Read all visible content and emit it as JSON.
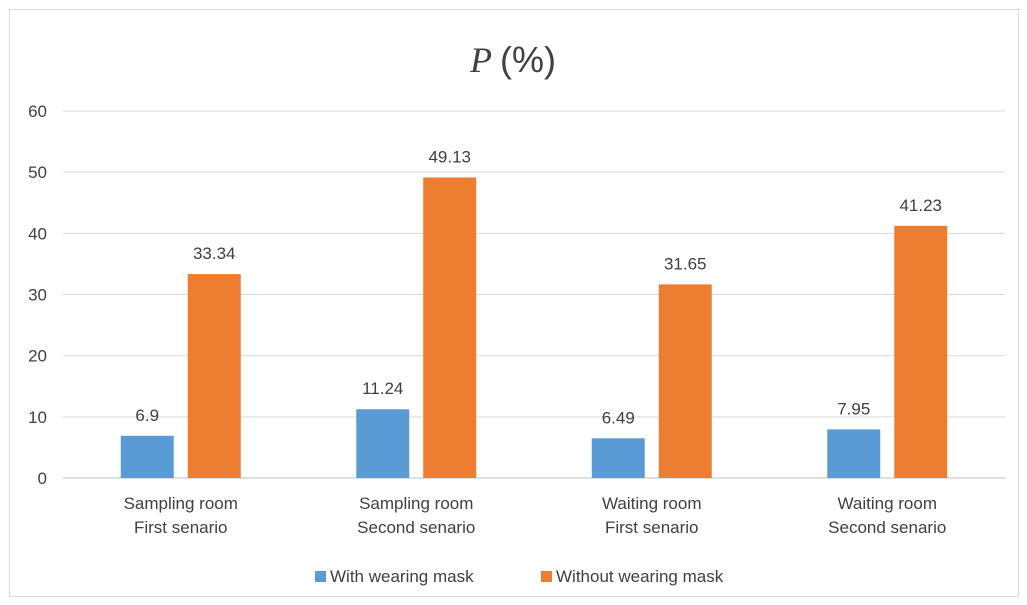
{
  "chart_data": {
    "type": "bar",
    "title": "P",
    "title_suffix": "(%)",
    "categories": [
      [
        "Sampling room",
        "First senario"
      ],
      [
        "Sampling room",
        "Second senario"
      ],
      [
        "Waiting room",
        "First senario"
      ],
      [
        "Waiting room",
        "Second senario"
      ]
    ],
    "series": [
      {
        "name": "With wearing mask",
        "color": "#5b9bd5",
        "values": [
          6.9,
          11.24,
          6.49,
          7.95
        ],
        "labels": [
          "6.9",
          "11.24",
          "6.49",
          "7.95"
        ]
      },
      {
        "name": "Without wearing mask",
        "color": "#ed7d31",
        "values": [
          33.34,
          49.13,
          31.65,
          41.23
        ],
        "labels": [
          "33.34",
          "49.13",
          "31.65",
          "41.23"
        ]
      }
    ],
    "ylim": [
      0,
      60
    ],
    "yticks": [
      "0",
      "10",
      "20",
      "30",
      "40",
      "50",
      "60"
    ],
    "grid": true,
    "legend_position": "bottom",
    "xlabel": "",
    "ylabel": ""
  }
}
